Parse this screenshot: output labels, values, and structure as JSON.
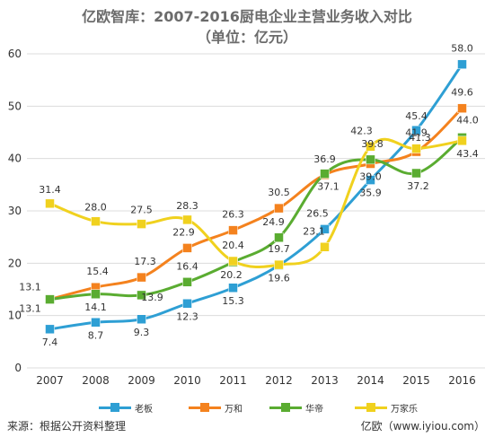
{
  "chart_data": {
    "type": "line",
    "title": "亿欧智库：2007-2016厨电企业主营业务收入对比",
    "subtitle": "（单位：亿元）",
    "categories": [
      "2007",
      "2008",
      "2009",
      "2010",
      "2011",
      "2012",
      "2013",
      "2014",
      "2015",
      "2016"
    ],
    "ylim": [
      0,
      60
    ],
    "yticks": [
      "0",
      "10",
      "20",
      "30",
      "40",
      "50",
      "60"
    ],
    "grid": true,
    "legend_position": "bottom",
    "series": [
      {
        "name": "老板",
        "color": "#2e9fd4",
        "values": [
          7.4,
          8.7,
          9.3,
          12.3,
          15.3,
          19.6,
          26.5,
          35.9,
          45.4,
          58.0
        ]
      },
      {
        "name": "万和",
        "color": "#f4821e",
        "values": [
          13.1,
          15.4,
          17.3,
          22.9,
          26.3,
          30.5,
          36.9,
          39.0,
          41.3,
          49.6
        ]
      },
      {
        "name": "华帝",
        "color": "#5aac31",
        "values": [
          13.1,
          14.1,
          13.9,
          16.4,
          20.2,
          24.9,
          37.1,
          39.8,
          37.2,
          44.0
        ]
      },
      {
        "name": "万家乐",
        "color": "#f0d11e",
        "values": [
          31.4,
          28.0,
          27.5,
          28.3,
          20.4,
          19.7,
          23.1,
          42.3,
          41.9,
          43.4
        ]
      }
    ],
    "data_labels": [
      {
        "text": "7.4"
      },
      {
        "text": "8.7"
      },
      {
        "text": "9.3"
      },
      {
        "text": "12.3"
      },
      {
        "text": "15.3"
      },
      {
        "text": "19.6"
      },
      {
        "text": "26.5"
      },
      {
        "text": "35.9"
      },
      {
        "text": "45.4"
      },
      {
        "text": "58.0"
      },
      {
        "text": "13.1"
      },
      {
        "text": "15.4"
      },
      {
        "text": "17.3"
      },
      {
        "text": "22.9"
      },
      {
        "text": "26.3"
      },
      {
        "text": "30.5"
      },
      {
        "text": "36.9"
      },
      {
        "text": "39.0"
      },
      {
        "text": "41.3"
      },
      {
        "text": "49.6"
      },
      {
        "text": "13.1"
      },
      {
        "text": "14.1"
      },
      {
        "text": "13.9"
      },
      {
        "text": "16.4"
      },
      {
        "text": "20.2"
      },
      {
        "text": "24.9"
      },
      {
        "text": "37.1"
      },
      {
        "text": "39.8"
      },
      {
        "text": "37.2"
      },
      {
        "text": "44.0"
      },
      {
        "text": "31.4"
      },
      {
        "text": "28.0"
      },
      {
        "text": "27.5"
      },
      {
        "text": "28.3"
      },
      {
        "text": "20.4"
      },
      {
        "text": "19.7"
      },
      {
        "text": "23.1"
      },
      {
        "text": "42.3"
      },
      {
        "text": "41.9"
      },
      {
        "text": "43.4"
      }
    ]
  },
  "footer": {
    "source": "来源：根据公开资料整理",
    "watermark": "亿欧（www.iyiou.com）"
  }
}
